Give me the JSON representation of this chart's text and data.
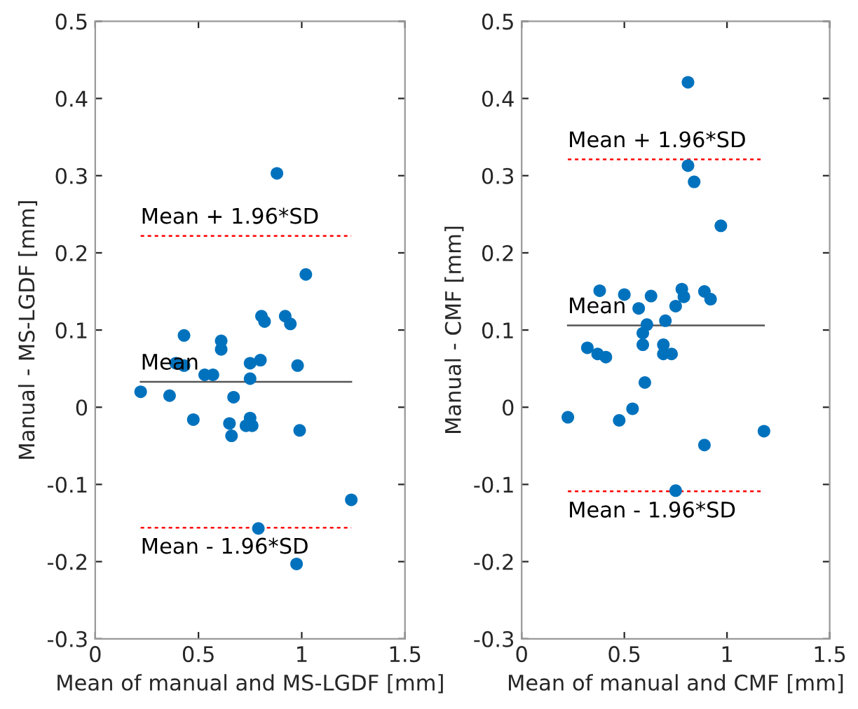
{
  "chart_data": [
    {
      "type": "scatter",
      "xlabel": "Mean of manual and MS-LGDF [mm]",
      "ylabel": "Manual - MS-LGDF [mm]",
      "marker": "circle",
      "grid": false,
      "legend": false,
      "xlim": [
        0,
        1.5
      ],
      "ylim": [
        -0.3,
        0.5
      ],
      "xticks": [
        0,
        0.5,
        1,
        1.5
      ],
      "yticks": [
        -0.3,
        -0.2,
        -0.1,
        0,
        0.1,
        0.2,
        0.3,
        0.4,
        0.5
      ],
      "series": [
        {
          "color": "#0072bd",
          "x": [
            0.88,
            1.02,
            0.805,
            0.82,
            0.92,
            0.945,
            0.43,
            0.61,
            0.61,
            0.39,
            0.43,
            0.75,
            0.8,
            0.98,
            0.53,
            0.57,
            0.75,
            0.22,
            0.36,
            0.67,
            0.475,
            0.65,
            0.75,
            0.73,
            0.76,
            0.66,
            0.99,
            1.24,
            0.79,
            0.975
          ],
          "values": [
            0.303,
            0.172,
            0.118,
            0.111,
            0.118,
            0.108,
            0.093,
            0.086,
            0.075,
            0.057,
            0.054,
            0.057,
            0.061,
            0.054,
            0.042,
            0.042,
            0.037,
            0.02,
            0.015,
            0.013,
            -0.016,
            -0.021,
            -0.014,
            -0.024,
            -0.024,
            -0.037,
            -0.03,
            -0.12,
            -0.157,
            -0.203
          ]
        }
      ],
      "ref_lines": [
        {
          "axis": "y",
          "value": 0.033,
          "label": "Mean",
          "color": "#555555",
          "line_style": "solid"
        },
        {
          "axis": "y",
          "value": 0.222,
          "label": "Mean + 1.96*SD",
          "color": "#ff0000",
          "line_style": "dotted"
        },
        {
          "axis": "y",
          "value": -0.156,
          "label": "Mean - 1.96*SD",
          "color": "#ff0000",
          "line_style": "dotted"
        }
      ]
    },
    {
      "type": "scatter",
      "xlabel": "Mean of manual and CMF [mm]",
      "ylabel": "Manual - CMF [mm]",
      "marker": "circle",
      "grid": false,
      "legend": false,
      "xlim": [
        0,
        1.5
      ],
      "ylim": [
        -0.3,
        0.5
      ],
      "xticks": [
        0,
        0.5,
        1,
        1.5
      ],
      "yticks": [
        -0.3,
        -0.2,
        -0.1,
        0,
        0.1,
        0.2,
        0.3,
        0.4,
        0.5
      ],
      "series": [
        {
          "color": "#0072bd",
          "x": [
            0.81,
            0.81,
            0.84,
            0.97,
            0.38,
            0.5,
            0.63,
            0.78,
            0.79,
            0.89,
            0.92,
            0.57,
            0.75,
            0.7,
            0.61,
            0.59,
            0.59,
            0.69,
            0.32,
            0.37,
            0.41,
            0.69,
            0.73,
            0.6,
            0.225,
            0.54,
            0.475,
            1.18,
            0.89,
            0.75
          ],
          "values": [
            0.421,
            0.313,
            0.292,
            0.235,
            0.151,
            0.146,
            0.144,
            0.153,
            0.143,
            0.15,
            0.14,
            0.128,
            0.131,
            0.112,
            0.107,
            0.096,
            0.081,
            0.081,
            0.077,
            0.069,
            0.065,
            0.069,
            0.069,
            0.032,
            -0.013,
            -0.002,
            -0.017,
            -0.031,
            -0.049,
            -0.108
          ]
        }
      ],
      "ref_lines": [
        {
          "axis": "y",
          "value": 0.106,
          "label": "Mean",
          "color": "#555555",
          "line_style": "solid"
        },
        {
          "axis": "y",
          "value": 0.321,
          "label": "Mean + 1.96*SD",
          "color": "#ff0000",
          "line_style": "dotted"
        },
        {
          "axis": "y",
          "value": -0.109,
          "label": "Mean - 1.96*SD",
          "color": "#ff0000",
          "line_style": "dotted"
        }
      ]
    }
  ]
}
